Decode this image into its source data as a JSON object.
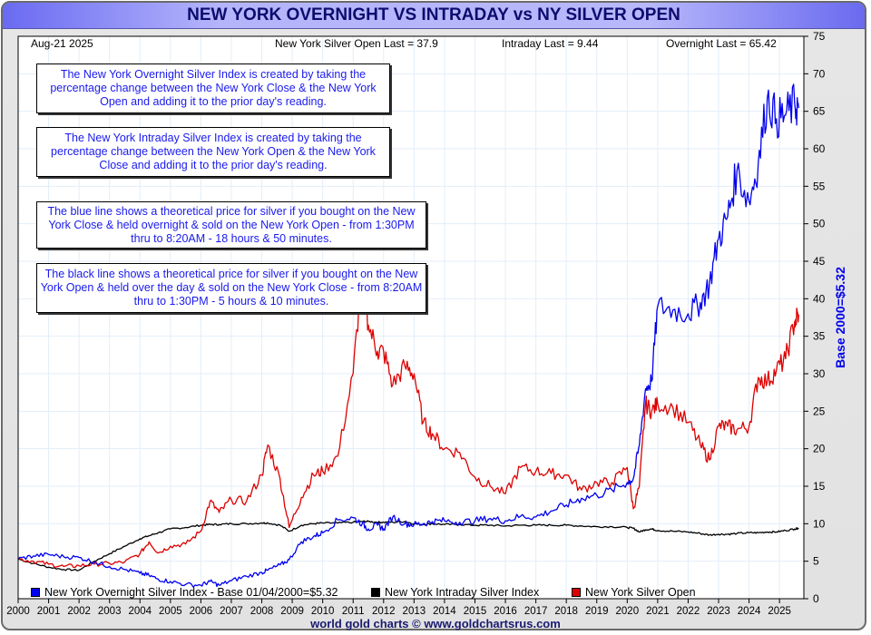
{
  "header": {
    "title": "NEW YORK OVERNIGHT VS INTRADAY vs NY SILVER OPEN",
    "date": "Aug-21  2025",
    "open_last": "New York Silver Open Last = 37.9",
    "intraday_last": "Intraday Last = 9.44",
    "overnight_last": "Overnight Last = 65.42"
  },
  "notes": [
    "The New York Overnight Silver Index is created by taking the percentage change between the New York Close & the New York Open and adding it to the prior day's reading.",
    "The New York Intraday Silver Index is created by taking the percentage change between the New York Open & the New York Close and adding it to the prior day's reading.",
    "The blue line shows a theoretical price for silver if you bought on the New York Close & held overnight & sold on the New York Open - from 1:30PM thru to 8:20AM - 18 hours & 50 minutes.",
    "The black line shows a theoretical price for silver if you bought on the New York Open & held over the day & sold on the New York Close - from 8:20AM thru to 1:30PM - 5 hours & 10 minutes."
  ],
  "footer": "world gold charts © www.goldchartsrus.com",
  "colors": {
    "overnight": "#0000ee",
    "intraday": "#000000",
    "open": "#dd0000",
    "grid": "#e3eef8",
    "title_text": "#0c0c6e",
    "note_text": "#1a1aee"
  },
  "chart_data": {
    "type": "line",
    "title": "NEW YORK OVERNIGHT VS INTRADAY vs NY SILVER OPEN",
    "xlabel": "",
    "ylabel": "Base 2000=$5.32",
    "ylabel_side": "right",
    "xlim": [
      2000,
      2025.8
    ],
    "ylim": [
      0,
      75
    ],
    "yticks": [
      0,
      5,
      10,
      15,
      20,
      25,
      30,
      35,
      40,
      45,
      50,
      55,
      60,
      65,
      70,
      75
    ],
    "xticks": [
      "2000",
      "2001",
      "2002",
      "2003",
      "2004",
      "2005",
      "2006",
      "2007",
      "2008",
      "2009",
      "2010",
      "2011",
      "2012",
      "2013",
      "2014",
      "2015",
      "2016",
      "2017",
      "2018",
      "2019",
      "2020",
      "2021",
      "2022",
      "2023",
      "2024",
      "2025"
    ],
    "grid": true,
    "legend_position": "bottom-left",
    "x": [
      2000.0,
      2000.5,
      2001.0,
      2001.5,
      2002.0,
      2002.5,
      2003.0,
      2003.5,
      2004.0,
      2004.3,
      2004.6,
      2005.0,
      2005.5,
      2006.0,
      2006.3,
      2006.6,
      2007.0,
      2007.5,
      2008.0,
      2008.2,
      2008.6,
      2008.9,
      2009.3,
      2009.7,
      2010.0,
      2010.5,
      2011.0,
      2011.3,
      2011.5,
      2011.8,
      2012.0,
      2012.3,
      2012.7,
      2013.0,
      2013.3,
      2013.6,
      2014.0,
      2014.5,
      2015.0,
      2015.5,
      2016.0,
      2016.5,
      2017.0,
      2017.5,
      2018.0,
      2018.5,
      2019.0,
      2019.5,
      2020.0,
      2020.2,
      2020.4,
      2020.6,
      2020.8,
      2021.0,
      2021.5,
      2022.0,
      2022.4,
      2022.7,
      2023.0,
      2023.3,
      2023.6,
      2024.0,
      2024.3,
      2024.6,
      2024.9,
      2025.2,
      2025.5,
      2025.63
    ],
    "series": [
      {
        "name": "New York Overnight Silver Index - Base 01/04/2000=$5.32",
        "color": "#0000ee",
        "values": [
          5.3,
          5.7,
          5.9,
          5.6,
          5.5,
          4.9,
          4.3,
          3.9,
          3.4,
          3.1,
          2.6,
          2.3,
          1.9,
          1.8,
          2.3,
          1.8,
          2.4,
          3.0,
          3.5,
          3.8,
          4.5,
          5.2,
          7.6,
          8.3,
          8.8,
          10.5,
          10.8,
          10.0,
          9.3,
          9.8,
          9.3,
          10.9,
          10.0,
          9.9,
          10.0,
          10.3,
          10.4,
          10.2,
          10.4,
          10.7,
          10.4,
          11.0,
          10.9,
          11.7,
          12.5,
          13.4,
          13.8,
          14.5,
          15.5,
          16.0,
          20.5,
          28.0,
          29.0,
          39.0,
          38.5,
          38.0,
          39.5,
          42.0,
          48.0,
          51.0,
          57.0,
          53.0,
          58.0,
          66.8,
          64.0,
          64.5,
          66.0,
          65.42
        ]
      },
      {
        "name": "New York Intraday Silver Index",
        "color": "#000000",
        "values": [
          5.3,
          4.7,
          4.2,
          3.9,
          3.8,
          5.0,
          6.0,
          7.0,
          8.0,
          8.4,
          8.8,
          9.3,
          9.5,
          9.8,
          9.9,
          9.9,
          10.0,
          10.0,
          10.1,
          10.1,
          9.8,
          9.0,
          9.8,
          10.0,
          10.1,
          10.1,
          10.2,
          10.3,
          10.3,
          10.2,
          10.2,
          10.2,
          10.3,
          10.0,
          9.9,
          10.0,
          9.9,
          9.9,
          9.8,
          9.8,
          9.7,
          9.8,
          9.8,
          9.8,
          9.8,
          9.7,
          9.6,
          9.6,
          9.5,
          9.4,
          8.9,
          9.2,
          9.3,
          9.1,
          9.0,
          8.9,
          8.7,
          8.5,
          8.6,
          8.6,
          8.7,
          8.8,
          8.8,
          8.9,
          8.9,
          9.1,
          9.3,
          9.44
        ]
      },
      {
        "name": "New York Silver Open",
        "color": "#dd0000",
        "values": [
          5.3,
          5.0,
          4.6,
          4.3,
          4.4,
          4.6,
          4.7,
          4.9,
          6.0,
          7.6,
          6.1,
          7.0,
          7.3,
          9.0,
          13.0,
          11.5,
          13.2,
          13.0,
          16.5,
          20.5,
          16.0,
          9.5,
          13.5,
          16.5,
          17.0,
          19.0,
          30.0,
          44.0,
          36.5,
          33.0,
          33.0,
          28.5,
          31.0,
          30.0,
          23.5,
          22.0,
          20.0,
          19.5,
          16.2,
          15.0,
          14.0,
          17.5,
          17.0,
          16.7,
          16.5,
          14.5,
          15.5,
          15.5,
          17.5,
          12.0,
          15.0,
          26.0,
          25.0,
          26.0,
          25.5,
          23.5,
          20.5,
          18.5,
          23.0,
          23.0,
          22.5,
          23.0,
          29.5,
          29.0,
          30.5,
          32.0,
          37.0,
          37.9
        ]
      }
    ]
  }
}
